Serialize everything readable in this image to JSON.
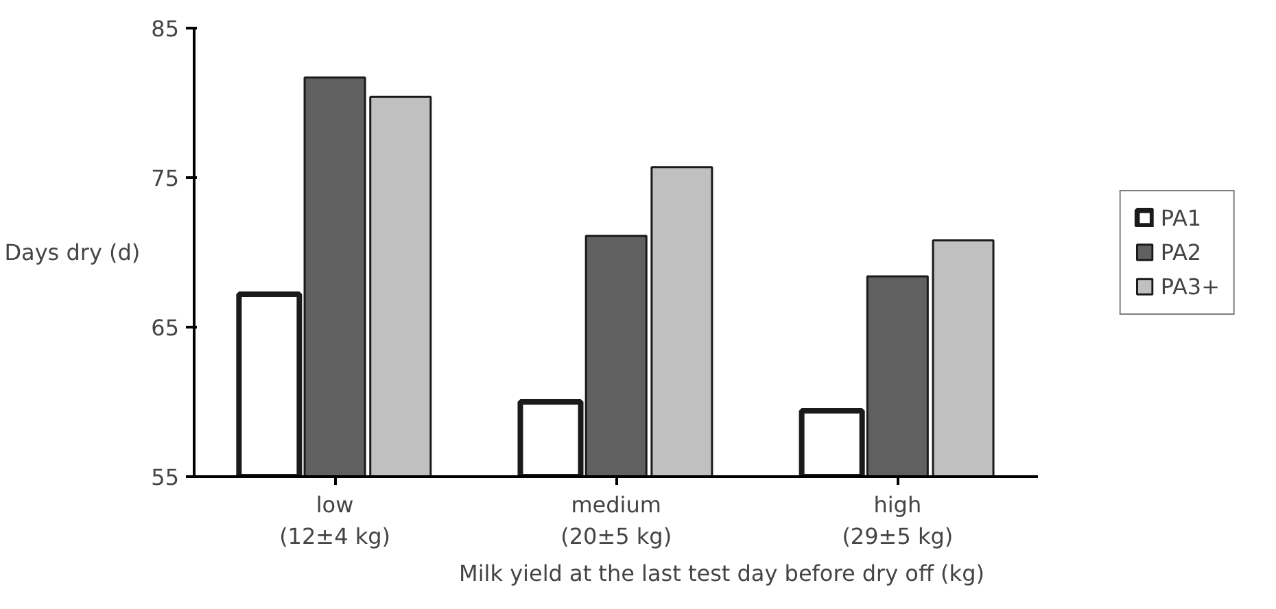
{
  "chart_data": {
    "type": "bar",
    "xlabel": "Milk yield at the last test day before dry off (kg)",
    "ylabel": "Days dry (d)",
    "categories": [
      "low\n(12±4 kg)",
      "medium\n(20±5 kg)",
      "high\n(29±5 kg)"
    ],
    "series": [
      {
        "name": "PA1",
        "color": "#ffffff",
        "values": [
          67.2,
          60.0,
          59.4
        ]
      },
      {
        "name": "PA2",
        "color": "#606060",
        "values": [
          81.7,
          71.1,
          68.4
        ]
      },
      {
        "name": "PA3+",
        "color": "#c0c0c0",
        "values": [
          80.4,
          75.7,
          70.8
        ]
      }
    ],
    "ylim": [
      55,
      85
    ],
    "yticks": [
      55,
      65,
      75,
      85
    ],
    "grid": false,
    "legend": "right"
  }
}
